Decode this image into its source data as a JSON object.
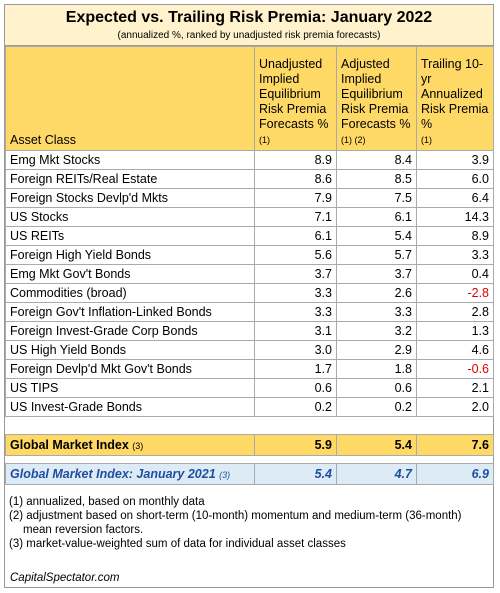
{
  "title": "Expected vs. Trailing Risk Premia: January 2022",
  "subtitle": "(annualized %, ranked by unadjusted risk premia forecasts)",
  "table": {
    "header": [
      {
        "text": "Asset Class"
      },
      {
        "text": "Unadjusted Implied Equilibrium Risk Premia Forecasts %",
        "note": "(1)"
      },
      {
        "text": "Adjusted Implied Equilibrium Risk Premia Forecasts %",
        "note": "(1) (2)"
      },
      {
        "text": "Trailing 10-yr Annualized Risk Premia %",
        "note": "(1)"
      }
    ],
    "rows": [
      [
        "Emg Mkt Stocks",
        "8.9",
        "8.4",
        "3.9"
      ],
      [
        "Foreign REITs/Real Estate",
        "8.6",
        "8.5",
        "6.0"
      ],
      [
        "Foreign Stocks Devlp'd Mkts",
        "7.9",
        "7.5",
        "6.4"
      ],
      [
        "US Stocks",
        "7.1",
        "6.1",
        "14.3"
      ],
      [
        "US REITs",
        "6.1",
        "5.4",
        "8.9"
      ],
      [
        "Foreign High Yield Bonds",
        "5.6",
        "5.7",
        "3.3"
      ],
      [
        "Emg Mkt Gov't Bonds",
        "3.7",
        "3.7",
        "0.4"
      ],
      [
        "Commodities (broad)",
        "3.3",
        "2.6",
        "-2.8"
      ],
      [
        "Foreign Gov't Inflation-Linked Bonds",
        "3.3",
        "3.3",
        "2.8"
      ],
      [
        "Foreign Invest-Grade Corp Bonds",
        "3.1",
        "3.2",
        "1.3"
      ],
      [
        "US High Yield Bonds",
        "3.0",
        "2.9",
        "4.6"
      ],
      [
        "Foreign Devlp'd Mkt Gov't Bonds",
        "1.7",
        "1.8",
        "-0.6"
      ],
      [
        "US TIPS",
        "0.6",
        "0.6",
        "2.1"
      ],
      [
        "US Invest-Grade Bonds",
        "0.2",
        "0.2",
        "2.0"
      ]
    ],
    "total": {
      "label": "Global Market Index",
      "note": "(3)",
      "values": [
        "5.9",
        "5.4",
        "7.6"
      ]
    },
    "prior": {
      "label": "Global Market Index: January 2021",
      "note": "(3)",
      "values": [
        "5.4",
        "4.7",
        "6.9"
      ]
    }
  },
  "footnotes": [
    "(1) annualized, based on monthly data",
    "(2) adjustment based on short-term (10-month) momentum and medium-term (36-month) mean reversion factors.",
    "(3) market-value-weighted sum of data for individual asset classes"
  ],
  "source": "CapitalSpectator.com"
}
